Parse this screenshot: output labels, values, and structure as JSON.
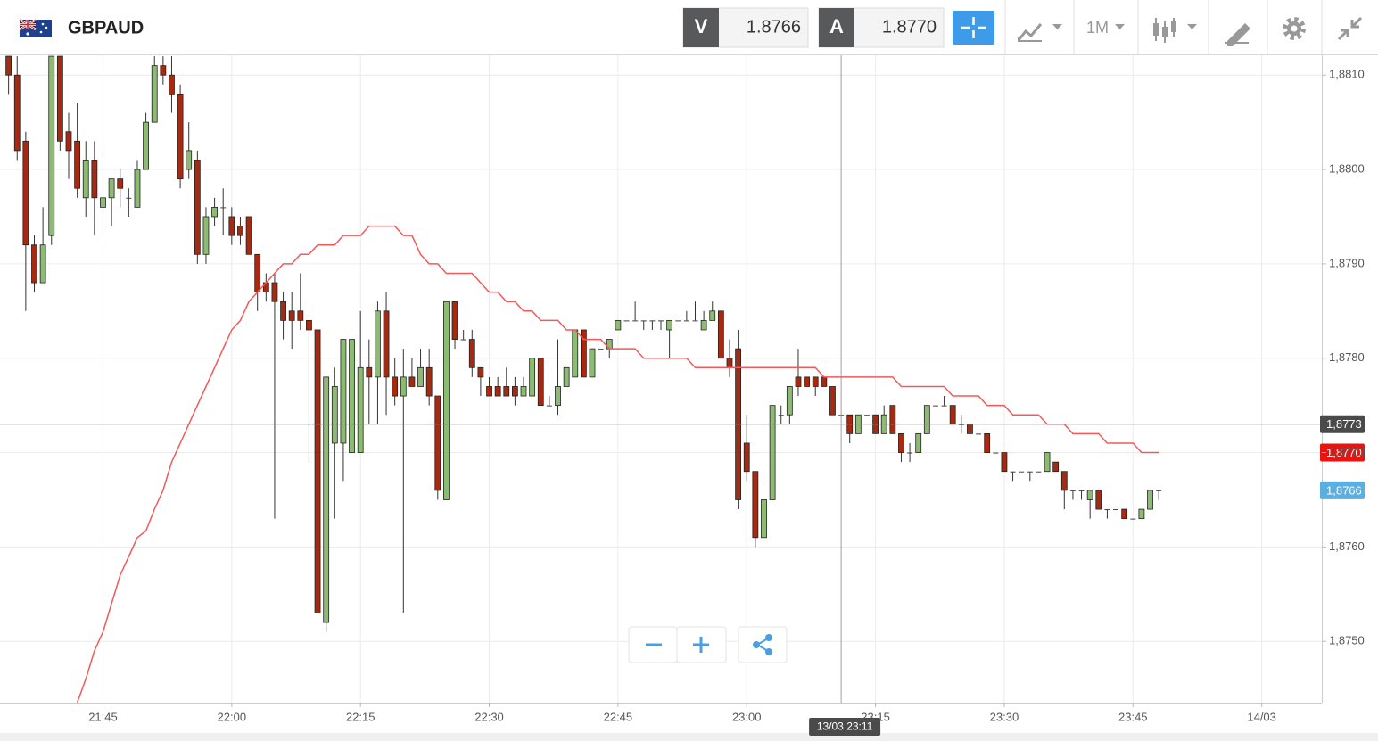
{
  "header": {
    "symbol": "GBPAUD",
    "bid_label": "V",
    "bid": 1.8766,
    "ask_label": "A",
    "ask": {
      "value": 1.877,
      "label": "1.8770"
    },
    "timeframe": "1M"
  },
  "chart_data": {
    "type": "candlestick",
    "x": [
      "21:34",
      "21:35",
      "21:36",
      "21:37",
      "21:38",
      "21:39",
      "21:40",
      "21:41",
      "21:42",
      "21:43",
      "21:44",
      "21:45",
      "21:46",
      "21:47",
      "21:48",
      "21:49",
      "21:50",
      "21:51",
      "21:52",
      "21:53",
      "21:54",
      "21:55",
      "21:56",
      "21:57",
      "21:58",
      "21:59",
      "22:00",
      "22:01",
      "22:02",
      "22:03",
      "22:04",
      "22:05",
      "22:06",
      "22:07",
      "22:08",
      "22:09",
      "22:10",
      "22:11",
      "22:12",
      "22:13",
      "22:14",
      "22:15",
      "22:16",
      "22:17",
      "22:18",
      "22:19",
      "22:20",
      "22:21",
      "22:22",
      "22:23",
      "22:24",
      "22:25",
      "22:26",
      "22:27",
      "22:28",
      "22:29",
      "22:30",
      "22:31",
      "22:32",
      "22:33",
      "22:34",
      "22:35",
      "22:36",
      "22:37",
      "22:38",
      "22:39",
      "22:40",
      "22:41",
      "22:42",
      "22:43",
      "22:44",
      "22:45",
      "22:46",
      "22:47",
      "22:48",
      "22:49",
      "22:50",
      "22:51",
      "22:52",
      "22:53",
      "22:54",
      "22:55",
      "22:56",
      "22:57",
      "22:58",
      "22:59",
      "23:00",
      "23:01",
      "23:02",
      "23:03",
      "23:04",
      "23:05",
      "23:06",
      "23:07",
      "23:08",
      "23:09",
      "23:10",
      "23:11",
      "23:12",
      "23:13",
      "23:14",
      "23:15",
      "23:16",
      "23:17",
      "23:18",
      "23:19",
      "23:20",
      "23:21",
      "23:22",
      "23:23",
      "23:24",
      "23:25",
      "23:26",
      "23:27",
      "23:28",
      "23:29",
      "23:30",
      "23:31",
      "23:32",
      "23:33",
      "23:34",
      "23:35",
      "23:36",
      "23:37",
      "23:38",
      "23:39",
      "23:40",
      "23:41",
      "23:42",
      "23:43",
      "23:44",
      "23:45",
      "23:46",
      "23:47",
      "23:48"
    ],
    "open": [
      1.8812,
      1.881,
      1.8803,
      1.8792,
      1.8788,
      1.8793,
      1.8812,
      1.8804,
      1.8803,
      1.8797,
      1.8801,
      1.8796,
      1.8797,
      1.8799,
      1.8797,
      1.8796,
      1.88,
      1.8805,
      1.8811,
      1.881,
      1.8808,
      1.88,
      1.8801,
      1.8791,
      1.8795,
      1.8796,
      1.8795,
      1.8794,
      1.8795,
      1.8791,
      1.8788,
      1.8788,
      1.8786,
      1.8785,
      1.8785,
      1.8784,
      1.8783,
      1.8752,
      1.8771,
      1.8771,
      1.877,
      1.877,
      1.8779,
      1.8778,
      1.8785,
      1.8778,
      1.8776,
      1.8778,
      1.8777,
      1.8779,
      1.8776,
      1.8765,
      1.8786,
      1.8782,
      1.8782,
      1.8779,
      1.8777,
      1.8777,
      1.8777,
      1.8777,
      1.8776,
      1.8776,
      1.878,
      1.8775,
      1.8775,
      1.8777,
      1.8778,
      1.8783,
      1.8778,
      1.8781,
      1.8781,
      1.8783,
      1.8784,
      1.8784,
      1.8784,
      1.8784,
      1.8784,
      1.8783,
      1.8784,
      1.8784,
      1.8784,
      1.8783,
      1.8784,
      1.8785,
      1.878,
      1.8781,
      1.8771,
      1.8768,
      1.8761,
      1.8765,
      1.8774,
      1.8774,
      1.8778,
      1.8778,
      1.8778,
      1.8778,
      1.8777,
      1.8774,
      1.8774,
      1.8772,
      1.8774,
      1.8774,
      1.8772,
      1.8775,
      1.8772,
      1.877,
      1.877,
      1.8772,
      1.8775,
      1.8775,
      1.8775,
      1.8773,
      1.8773,
      1.8772,
      1.8772,
      1.877,
      1.877,
      1.8768,
      1.8768,
      1.8768,
      1.8768,
      1.8768,
      1.8769,
      1.8768,
      1.8766,
      1.8766,
      1.8765,
      1.8766,
      1.8764,
      1.8764,
      1.8764,
      1.8763,
      1.8763,
      1.8764,
      1.8766
    ],
    "high": [
      1.8812,
      1.8812,
      1.8804,
      1.8793,
      1.8796,
      1.8812,
      1.8812,
      1.8806,
      1.8807,
      1.8803,
      1.8803,
      1.8802,
      1.8799,
      1.88,
      1.8798,
      1.8801,
      1.8806,
      1.8812,
      1.8812,
      1.8812,
      1.8809,
      1.8805,
      1.8802,
      1.8796,
      1.8797,
      1.8798,
      1.8796,
      1.8795,
      1.8795,
      1.8791,
      1.8789,
      1.8789,
      1.8787,
      1.8787,
      1.8789,
      1.8784,
      1.8783,
      1.8778,
      1.8779,
      1.8782,
      1.8782,
      1.8785,
      1.8782,
      1.8786,
      1.8787,
      1.878,
      1.8781,
      1.878,
      1.8781,
      1.8781,
      1.8776,
      1.8786,
      1.8786,
      1.8783,
      1.8783,
      1.8779,
      1.8778,
      1.8778,
      1.8779,
      1.8778,
      1.8778,
      1.878,
      1.878,
      1.8776,
      1.8782,
      1.8779,
      1.8783,
      1.8783,
      1.8781,
      1.8781,
      1.8782,
      1.8784,
      1.8784,
      1.8786,
      1.8784,
      1.8784,
      1.8784,
      1.8784,
      1.8784,
      1.8785,
      1.8786,
      1.8785,
      1.8786,
      1.8785,
      1.8782,
      1.8783,
      1.8774,
      1.8768,
      1.8765,
      1.8775,
      1.8775,
      1.8777,
      1.8781,
      1.8778,
      1.8778,
      1.8778,
      1.8777,
      1.8774,
      1.8774,
      1.8774,
      1.8774,
      1.8774,
      1.8775,
      1.8775,
      1.8772,
      1.8771,
      1.8772,
      1.8775,
      1.8775,
      1.8776,
      1.8775,
      1.8774,
      1.8773,
      1.8772,
      1.8772,
      1.877,
      1.877,
      1.8768,
      1.8768,
      1.8768,
      1.8768,
      1.877,
      1.8769,
      1.8768,
      1.8766,
      1.8766,
      1.8766,
      1.8766,
      1.8764,
      1.8764,
      1.8764,
      1.8763,
      1.8764,
      1.8766,
      1.8766
    ],
    "low": [
      1.8808,
      1.8801,
      1.8785,
      1.8787,
      1.8788,
      1.8792,
      1.8802,
      1.8799,
      1.8797,
      1.8795,
      1.8793,
      1.8793,
      1.8794,
      1.8796,
      1.8795,
      1.8796,
      1.88,
      1.8805,
      1.8809,
      1.8806,
      1.8798,
      1.8799,
      1.879,
      1.879,
      1.8794,
      1.8793,
      1.8792,
      1.8792,
      1.8791,
      1.8785,
      1.8786,
      1.8763,
      1.8782,
      1.8781,
      1.8783,
      1.8769,
      1.8753,
      1.8751,
      1.8763,
      1.8767,
      1.877,
      1.877,
      1.8773,
      1.8773,
      1.8774,
      1.8775,
      1.8753,
      1.8777,
      1.8777,
      1.8775,
      1.8765,
      1.8765,
      1.8781,
      1.8782,
      1.8778,
      1.8776,
      1.8776,
      1.8776,
      1.8776,
      1.8775,
      1.8776,
      1.8776,
      1.8775,
      1.8775,
      1.8774,
      1.8777,
      1.8778,
      1.8778,
      1.8778,
      1.8781,
      1.878,
      1.8783,
      1.8784,
      1.8784,
      1.8783,
      1.8783,
      1.8783,
      1.878,
      1.8784,
      1.8784,
      1.8784,
      1.8783,
      1.8784,
      1.878,
      1.8778,
      1.8764,
      1.8767,
      1.876,
      1.8761,
      1.8765,
      1.8773,
      1.8773,
      1.8776,
      1.8777,
      1.8776,
      1.8777,
      1.8774,
      1.8774,
      1.8771,
      1.8772,
      1.8774,
      1.8772,
      1.8772,
      1.8772,
      1.8769,
      1.8769,
      1.877,
      1.8772,
      1.8775,
      1.8775,
      1.8773,
      1.8772,
      1.8772,
      1.8772,
      1.877,
      1.877,
      1.8768,
      1.8767,
      1.8768,
      1.8767,
      1.8768,
      1.8768,
      1.8768,
      1.8764,
      1.8765,
      1.8765,
      1.8763,
      1.8764,
      1.8763,
      1.8764,
      1.8763,
      1.8763,
      1.8763,
      1.8764,
      1.8765
    ],
    "close": [
      1.881,
      1.8802,
      1.8792,
      1.8788,
      1.8792,
      1.8812,
      1.8803,
      1.8802,
      1.8798,
      1.8801,
      1.8797,
      1.8797,
      1.8799,
      1.8798,
      1.8797,
      1.88,
      1.8805,
      1.8811,
      1.881,
      1.8808,
      1.8799,
      1.8802,
      1.8791,
      1.8795,
      1.8796,
      1.8796,
      1.8793,
      1.8793,
      1.8791,
      1.8787,
      1.8787,
      1.8786,
      1.8784,
      1.8784,
      1.8784,
      1.8783,
      1.8753,
      1.8778,
      1.8777,
      1.8782,
      1.8782,
      1.8779,
      1.8778,
      1.8785,
      1.8778,
      1.8776,
      1.8778,
      1.8777,
      1.8779,
      1.8776,
      1.8766,
      1.8786,
      1.8782,
      1.8782,
      1.8779,
      1.8778,
      1.8776,
      1.8776,
      1.8776,
      1.8776,
      1.8777,
      1.878,
      1.8775,
      1.8775,
      1.8777,
      1.8779,
      1.8783,
      1.8778,
      1.8781,
      1.8781,
      1.8782,
      1.8784,
      1.8784,
      1.8784,
      1.8784,
      1.8784,
      1.8784,
      1.8784,
      1.8784,
      1.8784,
      1.8784,
      1.8784,
      1.8785,
      1.878,
      1.8779,
      1.8765,
      1.8768,
      1.8761,
      1.8765,
      1.8775,
      1.8774,
      1.8777,
      1.8777,
      1.8777,
      1.8777,
      1.8777,
      1.8774,
      1.8774,
      1.8772,
      1.8774,
      1.8774,
      1.8772,
      1.8774,
      1.8772,
      1.877,
      1.877,
      1.8772,
      1.8775,
      1.8775,
      1.8775,
      1.8773,
      1.8773,
      1.8772,
      1.8772,
      1.877,
      1.877,
      1.8768,
      1.8768,
      1.8768,
      1.8768,
      1.8768,
      1.877,
      1.8768,
      1.8766,
      1.8766,
      1.8766,
      1.8766,
      1.8764,
      1.8764,
      1.8764,
      1.8763,
      1.8763,
      1.8764,
      1.8766,
      1.8766
    ],
    "up_color": "#8dbb73",
    "down_color": "#a52a12",
    "flat_color": "#444444",
    "ma": {
      "color": "#f05a5a",
      "values": [
        null,
        null,
        null,
        null,
        null,
        null,
        null,
        null,
        1.87435,
        1.8746,
        1.8749,
        1.8751,
        1.8754,
        1.8757,
        1.8759,
        1.8761,
        1.87617,
        1.8764,
        1.8766,
        1.8769,
        1.8771,
        1.8773,
        1.8775,
        1.8777,
        1.8779,
        1.8781,
        1.8783,
        1.8784,
        1.8786,
        1.8787,
        1.8788,
        1.8789,
        1.879,
        1.879,
        1.8791,
        1.8791,
        1.8792,
        1.8792,
        1.8792,
        1.8793,
        1.8793,
        1.8793,
        1.8794,
        1.8794,
        1.8794,
        1.8794,
        1.8793,
        1.8793,
        1.8791,
        1.879,
        1.879,
        1.8789,
        1.8789,
        1.8789,
        1.8789,
        1.8788,
        1.8787,
        1.8787,
        1.8786,
        1.8786,
        1.8785,
        1.8785,
        1.8784,
        1.8784,
        1.8784,
        1.8783,
        1.8783,
        1.8782,
        1.8782,
        1.8782,
        1.8781,
        1.8781,
        1.8781,
        1.8781,
        1.878,
        1.878,
        1.878,
        1.878,
        1.878,
        1.878,
        1.8779,
        1.8779,
        1.8779,
        1.8779,
        1.8779,
        1.8779,
        1.8779,
        1.8779,
        1.8779,
        1.8779,
        1.8779,
        1.8779,
        1.8779,
        1.8779,
        1.8779,
        1.8778,
        1.8778,
        1.8778,
        1.8778,
        1.8778,
        1.8778,
        1.8778,
        1.8778,
        1.8778,
        1.8777,
        1.8777,
        1.8777,
        1.8777,
        1.8777,
        1.8777,
        1.8776,
        1.8776,
        1.8776,
        1.8776,
        1.8775,
        1.8775,
        1.8775,
        1.8774,
        1.8774,
        1.8774,
        1.8774,
        1.8773,
        1.8773,
        1.8773,
        1.8772,
        1.8772,
        1.8772,
        1.8772,
        1.8771,
        1.8771,
        1.8771,
        1.8771,
        1.877,
        1.877,
        1.877
      ]
    },
    "xlim": [
      "21:33",
      "00:07"
    ],
    "xticks": [
      "21:45",
      "22:00",
      "22:15",
      "22:30",
      "22:45",
      "23:00",
      "23:15",
      "23:30",
      "23:45",
      {
        "value": "00:00",
        "label": "14/03"
      }
    ],
    "ylim": [
      1.87435,
      1.88121
    ],
    "yticks": [
      {
        "value": 1.875,
        "label": "1,8750"
      },
      {
        "value": 1.876,
        "label": "1,8760"
      },
      {
        "value": 1.877,
        "label": "1,8770"
      },
      {
        "value": 1.878,
        "label": "1,8780"
      },
      {
        "value": 1.879,
        "label": "1,8790"
      },
      {
        "value": 1.88,
        "label": "1,8800"
      },
      {
        "value": 1.881,
        "label": "1,8810"
      }
    ],
    "grid": true,
    "crosshair": {
      "x": {
        "value": "23:11",
        "label": "13/03 23:11"
      },
      "y": {
        "value": 1.8773,
        "label": "1,8773"
      }
    },
    "price_markers": [
      {
        "value": 1.877,
        "label": "1,8770",
        "color": "#e8140f"
      },
      {
        "value": 1.8766,
        "label": "1,8766",
        "color": "#5aaee0"
      }
    ]
  }
}
